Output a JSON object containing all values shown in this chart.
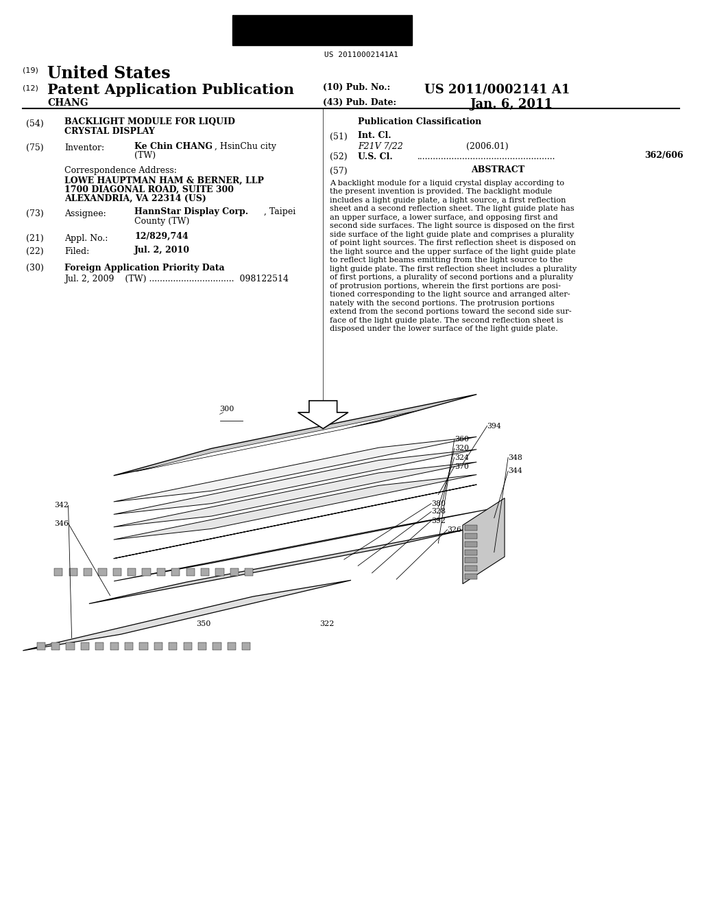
{
  "background_color": "#ffffff",
  "barcode_text": "US 20110002141A1",
  "patent_number": "US 2011/0002141 A1",
  "pub_date": "Jan. 6, 2011",
  "title_num": "(19)",
  "title_country": "United States",
  "app_type_num": "(12)",
  "app_type": "Patent Application Publication",
  "pub_num_label": "(10) Pub. No.:",
  "pub_date_label": "(43) Pub. Date:",
  "inventor_name": "CHANG",
  "section54_line1": "BACKLIGHT MODULE FOR LIQUID",
  "section54_line2": "CRYSTAL DISPLAY",
  "section75_label": "Inventor:",
  "section75_name_bold": "Ke Chin CHANG",
  "section75_name_rest": ", HsinChu city",
  "section75_line2": "(TW)",
  "corr_label": "Correspondence Address:",
  "corr_name": "LOWE HAUPTMAN HAM & BERNER, LLP",
  "corr_addr1": "1700 DIAGONAL ROAD, SUITE 300",
  "corr_addr2": "ALEXANDRIA, VA 22314 (US)",
  "section73_label": "Assignee:",
  "section73_bold": "HannStar Display Corp.",
  "section73_rest": ", Taipei",
  "section73_line2": "County (TW)",
  "section21_label": "Appl. No.:",
  "section21_value": "12/829,744",
  "section22_label": "Filed:",
  "section22_value": "Jul. 2, 2010",
  "section30_label": "Foreign Application Priority Data",
  "section30_data": "Jul. 2, 2009    (TW) ................................  098122514",
  "pub_class_label": "Publication Classification",
  "section51_label": "Int. Cl.",
  "section51_class": "F21V 7/22",
  "section51_year": "(2006.01)",
  "section52_value": "362/606",
  "section57_label": "ABSTRACT",
  "abstract_lines": [
    "A backlight module for a liquid crystal display according to",
    "the present invention is provided. The backlight module",
    "includes a light guide plate, a light source, a first reflection",
    "sheet and a second reflection sheet. The light guide plate has",
    "an upper surface, a lower surface, and opposing first and",
    "second side surfaces. The light source is disposed on the first",
    "side surface of the light guide plate and comprises a plurality",
    "of point light sources. The first reflection sheet is disposed on",
    "the light source and the upper surface of the light guide plate",
    "to reflect light beams emitting from the light source to the",
    "light guide plate. The first reflection sheet includes a plurality",
    "of first portions, a plurality of second portions and a plurality",
    "of protrusion portions, wherein the first portions are posi-",
    "tioned corresponding to the light source and arranged alter-",
    "nately with the second portions. The protrusion portions",
    "extend from the second portions toward the second side sur-",
    "face of the light guide plate. The second reflection sheet is",
    "disposed under the lower surface of the light guide plate."
  ]
}
